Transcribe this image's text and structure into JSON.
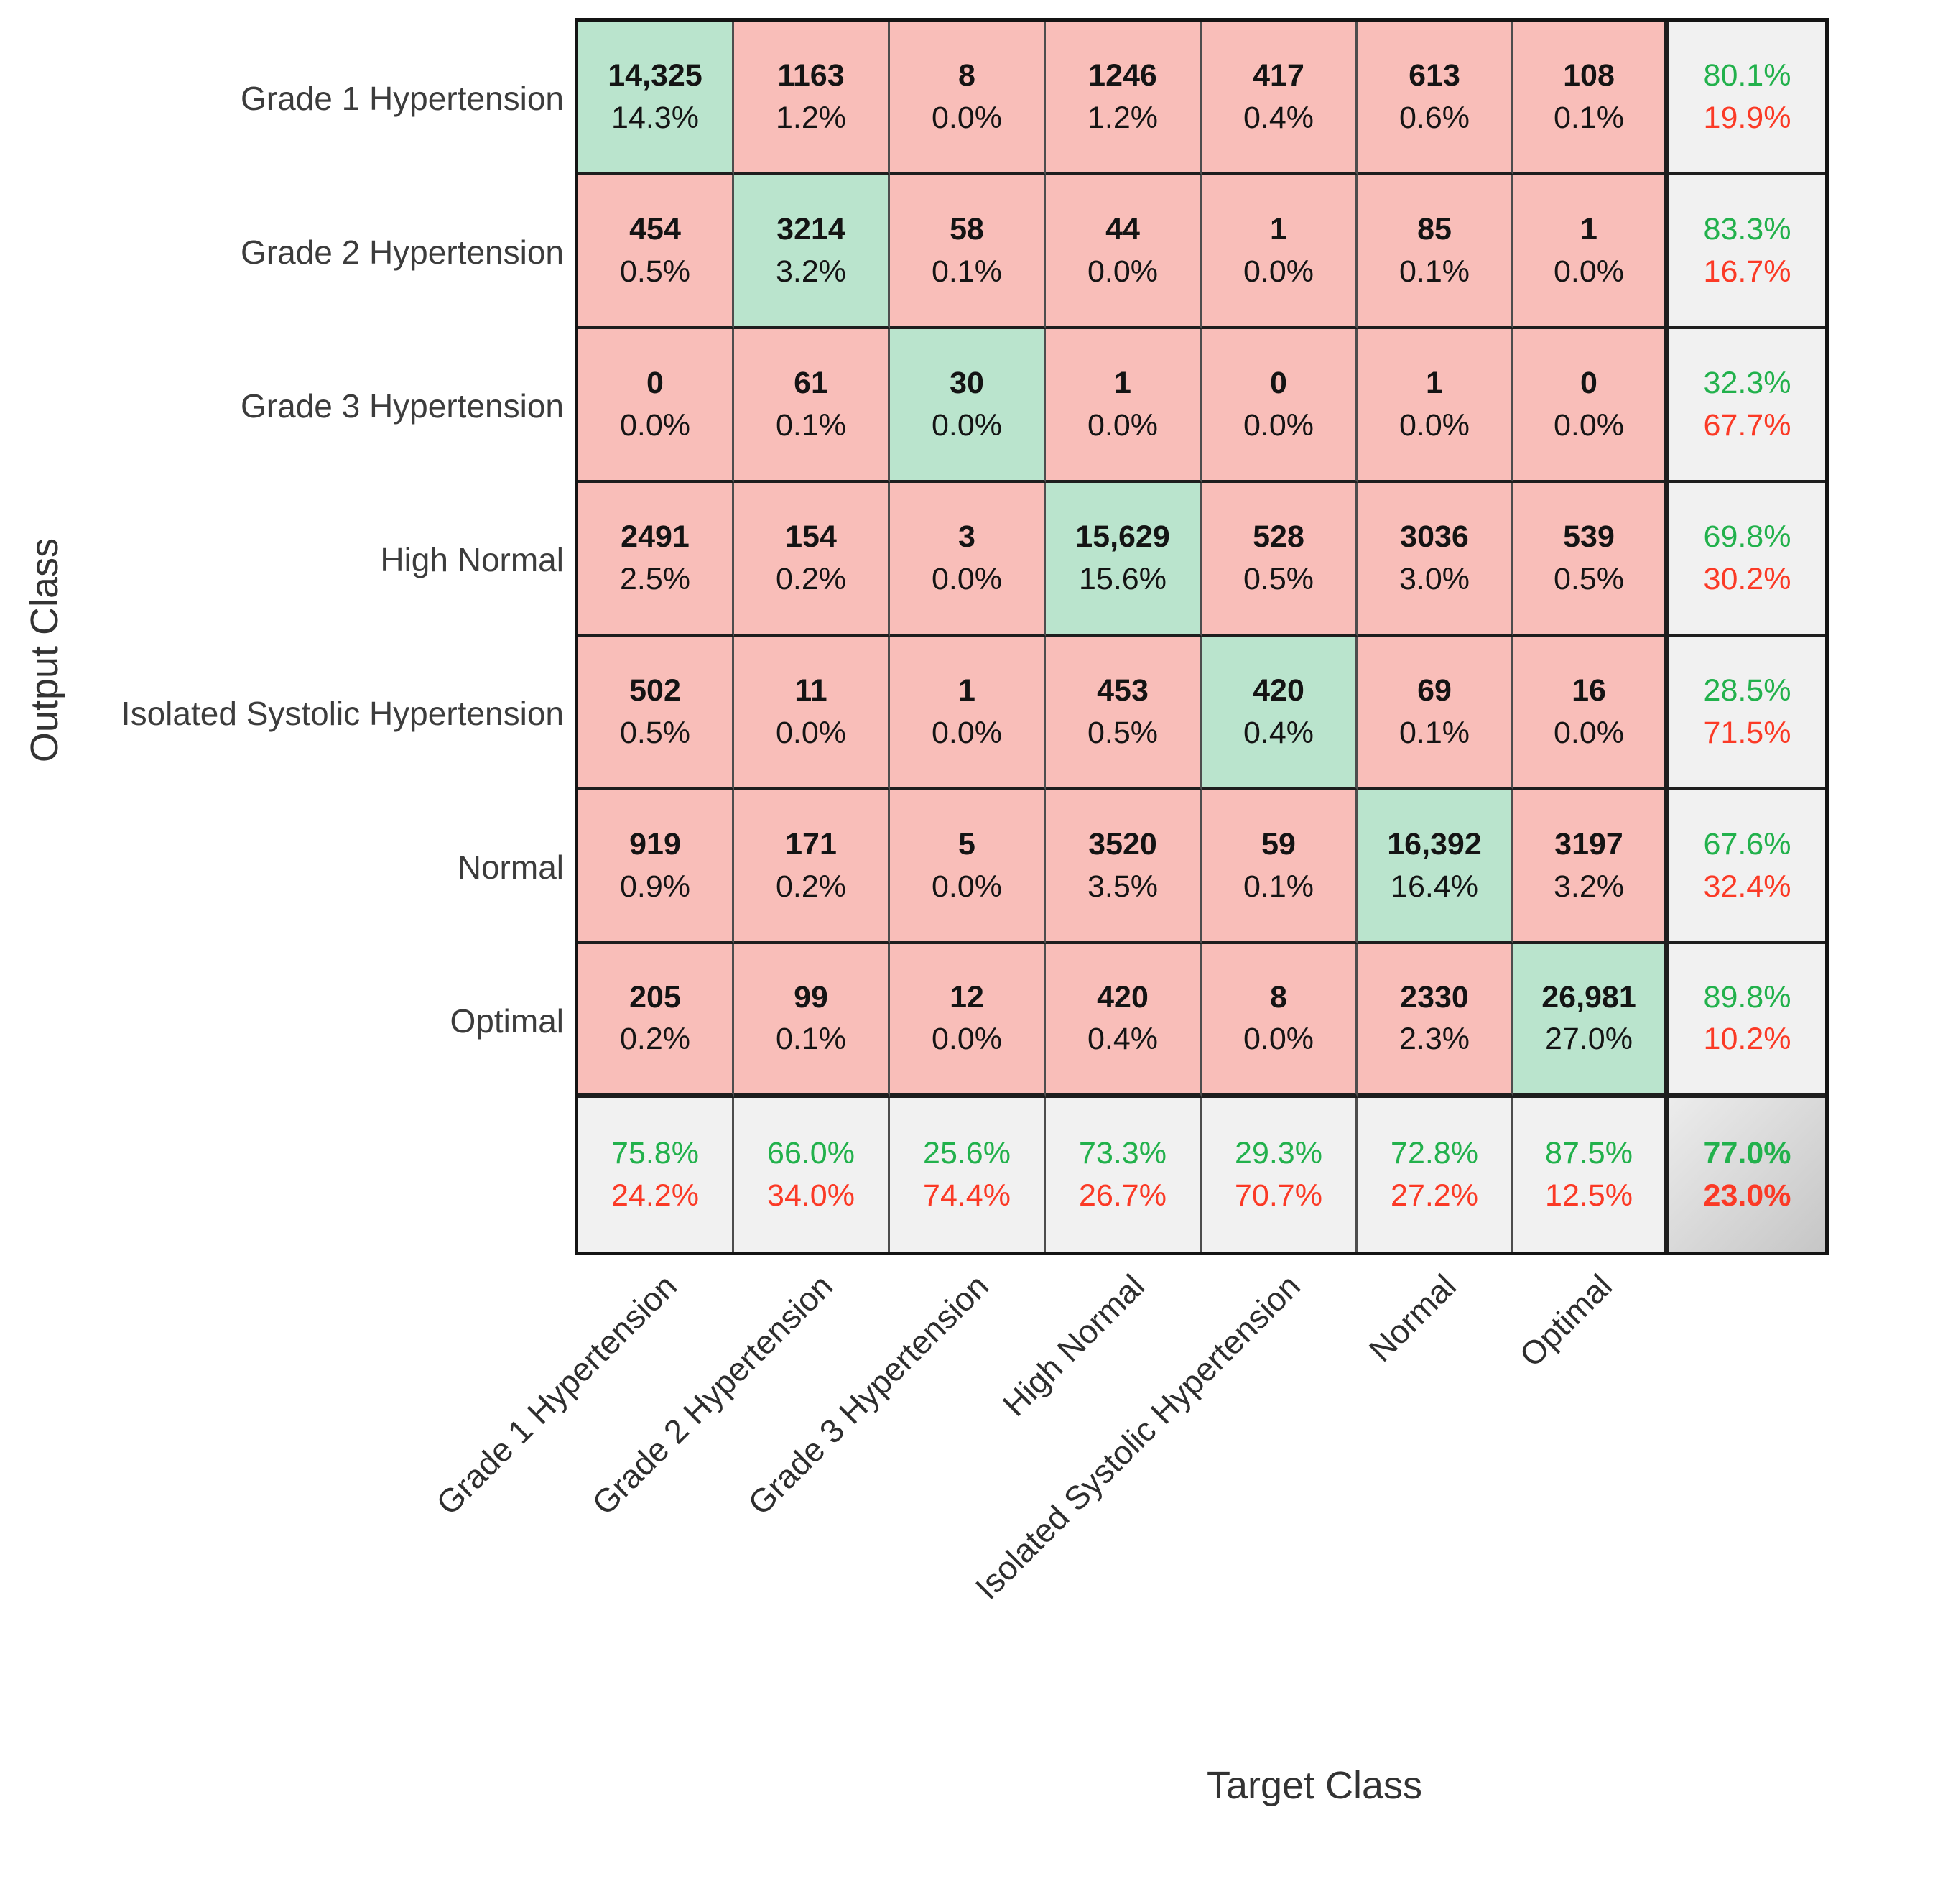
{
  "colors": {
    "diagonal_bg": "#BAE4CD",
    "off_diagonal_bg": "#F9BEB9",
    "summary_bg": "#F1F1F1",
    "total_bg_light": "#ECECEC",
    "total_bg_dark": "#C6C6C6",
    "good_text": "#22B14C",
    "bad_text": "#FB3A26",
    "grid_line": "#4D4D4D"
  },
  "chart_data": {
    "type": "heatmap",
    "subtype": "confusion-matrix",
    "xlabel": "Target Class",
    "ylabel": "Output Class",
    "legend_position": "none",
    "grid": true,
    "classes": [
      "Grade 1 Hypertension",
      "Grade 2 Hypertension",
      "Grade 3 Hypertension",
      "High Normal",
      "Isolated Systolic Hypertension",
      "Normal",
      "Optimal"
    ],
    "rows": [
      {
        "label": "Grade 1 Hypertension",
        "cells": [
          {
            "n": 14325,
            "label": "14,325",
            "pct": "14.3%"
          },
          {
            "n": 1163,
            "label": "1163",
            "pct": "1.2%"
          },
          {
            "n": 8,
            "label": "8",
            "pct": "0.0%"
          },
          {
            "n": 1246,
            "label": "1246",
            "pct": "1.2%"
          },
          {
            "n": 417,
            "label": "417",
            "pct": "0.4%"
          },
          {
            "n": 613,
            "label": "613",
            "pct": "0.6%"
          },
          {
            "n": 108,
            "label": "108",
            "pct": "0.1%"
          }
        ],
        "summary": {
          "good": "80.1%",
          "bad": "19.9%"
        }
      },
      {
        "label": "Grade 2 Hypertension",
        "cells": [
          {
            "n": 454,
            "label": "454",
            "pct": "0.5%"
          },
          {
            "n": 3214,
            "label": "3214",
            "pct": "3.2%"
          },
          {
            "n": 58,
            "label": "58",
            "pct": "0.1%"
          },
          {
            "n": 44,
            "label": "44",
            "pct": "0.0%"
          },
          {
            "n": 1,
            "label": "1",
            "pct": "0.0%"
          },
          {
            "n": 85,
            "label": "85",
            "pct": "0.1%"
          },
          {
            "n": 1,
            "label": "1",
            "pct": "0.0%"
          }
        ],
        "summary": {
          "good": "83.3%",
          "bad": "16.7%"
        }
      },
      {
        "label": "Grade 3 Hypertension",
        "cells": [
          {
            "n": 0,
            "label": "0",
            "pct": "0.0%"
          },
          {
            "n": 61,
            "label": "61",
            "pct": "0.1%"
          },
          {
            "n": 30,
            "label": "30",
            "pct": "0.0%"
          },
          {
            "n": 1,
            "label": "1",
            "pct": "0.0%"
          },
          {
            "n": 0,
            "label": "0",
            "pct": "0.0%"
          },
          {
            "n": 1,
            "label": "1",
            "pct": "0.0%"
          },
          {
            "n": 0,
            "label": "0",
            "pct": "0.0%"
          }
        ],
        "summary": {
          "good": "32.3%",
          "bad": "67.7%"
        }
      },
      {
        "label": "High Normal",
        "cells": [
          {
            "n": 2491,
            "label": "2491",
            "pct": "2.5%"
          },
          {
            "n": 154,
            "label": "154",
            "pct": "0.2%"
          },
          {
            "n": 3,
            "label": "3",
            "pct": "0.0%"
          },
          {
            "n": 15629,
            "label": "15,629",
            "pct": "15.6%"
          },
          {
            "n": 528,
            "label": "528",
            "pct": "0.5%"
          },
          {
            "n": 3036,
            "label": "3036",
            "pct": "3.0%"
          },
          {
            "n": 539,
            "label": "539",
            "pct": "0.5%"
          }
        ],
        "summary": {
          "good": "69.8%",
          "bad": "30.2%"
        }
      },
      {
        "label": "Isolated Systolic Hypertension",
        "cells": [
          {
            "n": 502,
            "label": "502",
            "pct": "0.5%"
          },
          {
            "n": 11,
            "label": "11",
            "pct": "0.0%"
          },
          {
            "n": 1,
            "label": "1",
            "pct": "0.0%"
          },
          {
            "n": 453,
            "label": "453",
            "pct": "0.5%"
          },
          {
            "n": 420,
            "label": "420",
            "pct": "0.4%"
          },
          {
            "n": 69,
            "label": "69",
            "pct": "0.1%"
          },
          {
            "n": 16,
            "label": "16",
            "pct": "0.0%"
          }
        ],
        "summary": {
          "good": "28.5%",
          "bad": "71.5%"
        }
      },
      {
        "label": "Normal",
        "cells": [
          {
            "n": 919,
            "label": "919",
            "pct": "0.9%"
          },
          {
            "n": 171,
            "label": "171",
            "pct": "0.2%"
          },
          {
            "n": 5,
            "label": "5",
            "pct": "0.0%"
          },
          {
            "n": 3520,
            "label": "3520",
            "pct": "3.5%"
          },
          {
            "n": 59,
            "label": "59",
            "pct": "0.1%"
          },
          {
            "n": 16392,
            "label": "16,392",
            "pct": "16.4%"
          },
          {
            "n": 3197,
            "label": "3197",
            "pct": "3.2%"
          }
        ],
        "summary": {
          "good": "67.6%",
          "bad": "32.4%"
        }
      },
      {
        "label": "Optimal",
        "cells": [
          {
            "n": 205,
            "label": "205",
            "pct": "0.2%"
          },
          {
            "n": 99,
            "label": "99",
            "pct": "0.1%"
          },
          {
            "n": 12,
            "label": "12",
            "pct": "0.0%"
          },
          {
            "n": 420,
            "label": "420",
            "pct": "0.4%"
          },
          {
            "n": 8,
            "label": "8",
            "pct": "0.0%"
          },
          {
            "n": 2330,
            "label": "2330",
            "pct": "2.3%"
          },
          {
            "n": 26981,
            "label": "26,981",
            "pct": "27.0%"
          }
        ],
        "summary": {
          "good": "89.8%",
          "bad": "10.2%"
        }
      }
    ],
    "column_summary": [
      {
        "good": "75.8%",
        "bad": "24.2%"
      },
      {
        "good": "66.0%",
        "bad": "34.0%"
      },
      {
        "good": "25.6%",
        "bad": "74.4%"
      },
      {
        "good": "73.3%",
        "bad": "26.7%"
      },
      {
        "good": "29.3%",
        "bad": "70.7%"
      },
      {
        "good": "72.8%",
        "bad": "27.2%"
      },
      {
        "good": "87.5%",
        "bad": "12.5%"
      }
    ],
    "total_summary": {
      "good": "77.0%",
      "bad": "23.0%"
    }
  }
}
